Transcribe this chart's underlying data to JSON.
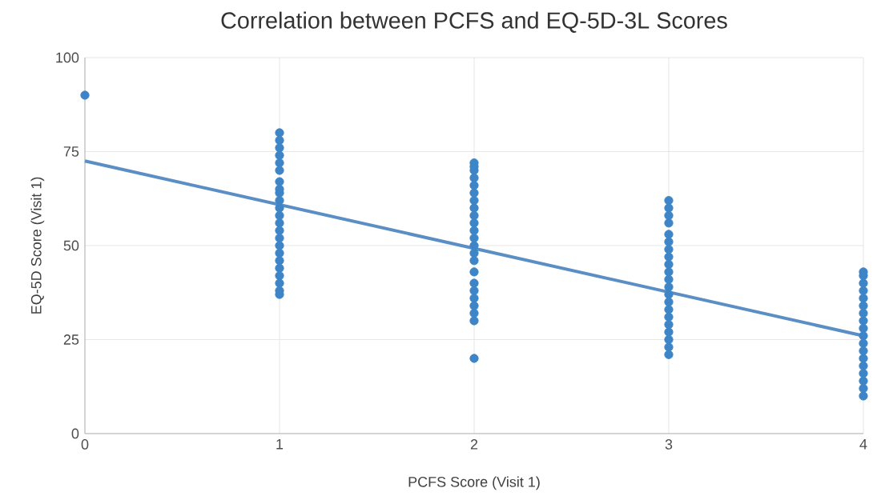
{
  "chart_data": {
    "type": "scatter",
    "title": "Correlation between PCFS and EQ-5D-3L Scores",
    "xlabel": "PCFS Score (Visit 1)",
    "ylabel": "EQ-5D Score (Visit 1)",
    "xlim": [
      0,
      4
    ],
    "ylim": [
      0,
      100
    ],
    "xticks": [
      0,
      1,
      2,
      3,
      4
    ],
    "yticks": [
      0,
      25,
      50,
      75,
      100
    ],
    "grid": true,
    "marker": "circle",
    "series": [
      {
        "color": "#3d85c6",
        "x": [
          0,
          1,
          1,
          1,
          1,
          1,
          1,
          1,
          1,
          1,
          1,
          1,
          1,
          1,
          1,
          1,
          1,
          1,
          1,
          1,
          1,
          1,
          1,
          1,
          2,
          2,
          2,
          2,
          2,
          2,
          2,
          2,
          2,
          2,
          2,
          2,
          2,
          2,
          2,
          2,
          2,
          2,
          2,
          2,
          2,
          2,
          2,
          3,
          3,
          3,
          3,
          3,
          3,
          3,
          3,
          3,
          3,
          3,
          3,
          3,
          3,
          3,
          3,
          3,
          3,
          3,
          3,
          3,
          4,
          4,
          4,
          4,
          4,
          4,
          4,
          4,
          4,
          4,
          4,
          4,
          4,
          4,
          4,
          4,
          4,
          4
        ],
        "values": [
          90,
          37,
          38,
          40,
          42,
          44,
          46,
          48,
          50,
          52,
          54,
          56,
          58,
          60,
          62,
          64,
          65,
          67,
          70,
          72,
          74,
          76,
          78,
          80,
          20,
          30,
          32,
          34,
          36,
          38,
          40,
          43,
          46,
          48,
          50,
          52,
          54,
          56,
          58,
          60,
          62,
          64,
          66,
          68,
          70,
          72,
          71,
          21,
          23,
          25,
          27,
          29,
          31,
          33,
          35,
          37,
          39,
          41,
          43,
          45,
          47,
          49,
          51,
          53,
          56,
          58,
          60,
          62,
          10,
          12,
          14,
          16,
          18,
          20,
          22,
          24,
          26,
          28,
          30,
          32,
          34,
          36,
          38,
          40,
          42,
          43
        ]
      },
      {
        "type": "line",
        "marker": "none",
        "color": "#5b8ec4",
        "x": [
          0,
          4
        ],
        "values": [
          72.5,
          26
        ]
      }
    ]
  }
}
